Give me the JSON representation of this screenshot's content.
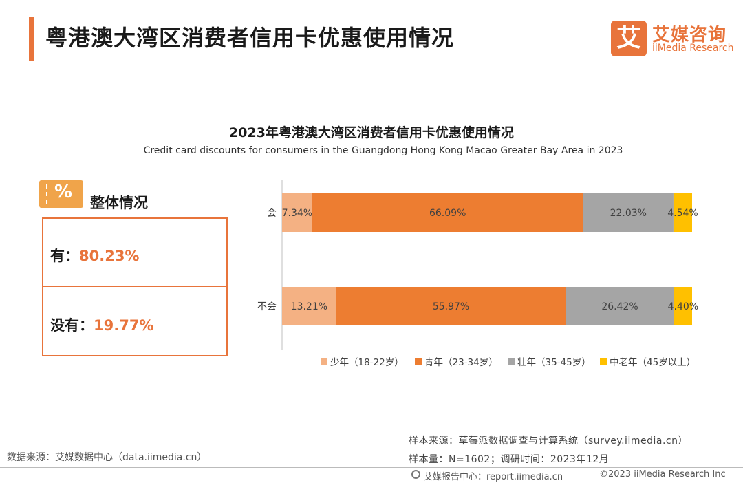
{
  "header": {
    "title": "粤港澳大湾区消费者信用卡优惠使用情况",
    "logo_mark": "艾",
    "logo_cn": "艾媒咨询",
    "logo_en": "iiMedia Research"
  },
  "summary": {
    "icon": "%",
    "title": "整体情况",
    "rows": [
      {
        "label": "有：",
        "value": "80.23%"
      },
      {
        "label": "没有：",
        "value": "19.77%"
      }
    ]
  },
  "chart_data": {
    "type": "bar",
    "orientation": "horizontal",
    "stacked": true,
    "percent_stacked": true,
    "title": "2023年粤港澳大湾区消费者信用卡优惠使用情况",
    "subtitle": "Credit card discounts for consumers in the Guangdong Hong Kong Macao Greater Bay Area in 2023",
    "categories": [
      "会",
      "不会"
    ],
    "series": [
      {
        "name": "少年（18-22岁）",
        "values": [
          7.34,
          13.21
        ],
        "color": "#f4b183"
      },
      {
        "name": "青年（23-34岁）",
        "values": [
          66.09,
          55.97
        ],
        "color": "#ed7d31"
      },
      {
        "name": "壮年（35-45岁）",
        "values": [
          22.03,
          26.42
        ],
        "color": "#a5a5a5"
      },
      {
        "name": "中老年（45岁以上）",
        "values": [
          4.54,
          4.4
        ],
        "color": "#ffc000"
      }
    ],
    "data_labels": [
      [
        "7.34%",
        "66.09%",
        "22.03%",
        "4.54%"
      ],
      [
        "13.21%",
        "55.97%",
        "26.42%",
        "4.40%"
      ]
    ],
    "legend_position": "bottom",
    "grid": false
  },
  "footer": {
    "source_left": "数据来源：艾媒数据中心（data.iimedia.cn）",
    "sample_source": "样本来源：草莓派数据调查与计算系统（survey.iimedia.cn）",
    "sample_size": "样本量：N=1602；调研时间：2023年12月",
    "report_center": "艾媒报告中心：report.iimedia.cn",
    "copyright": "©2023  iiMedia Research Inc"
  },
  "colors": {
    "accent": "#e8743b",
    "tag": "#f0a44a"
  }
}
